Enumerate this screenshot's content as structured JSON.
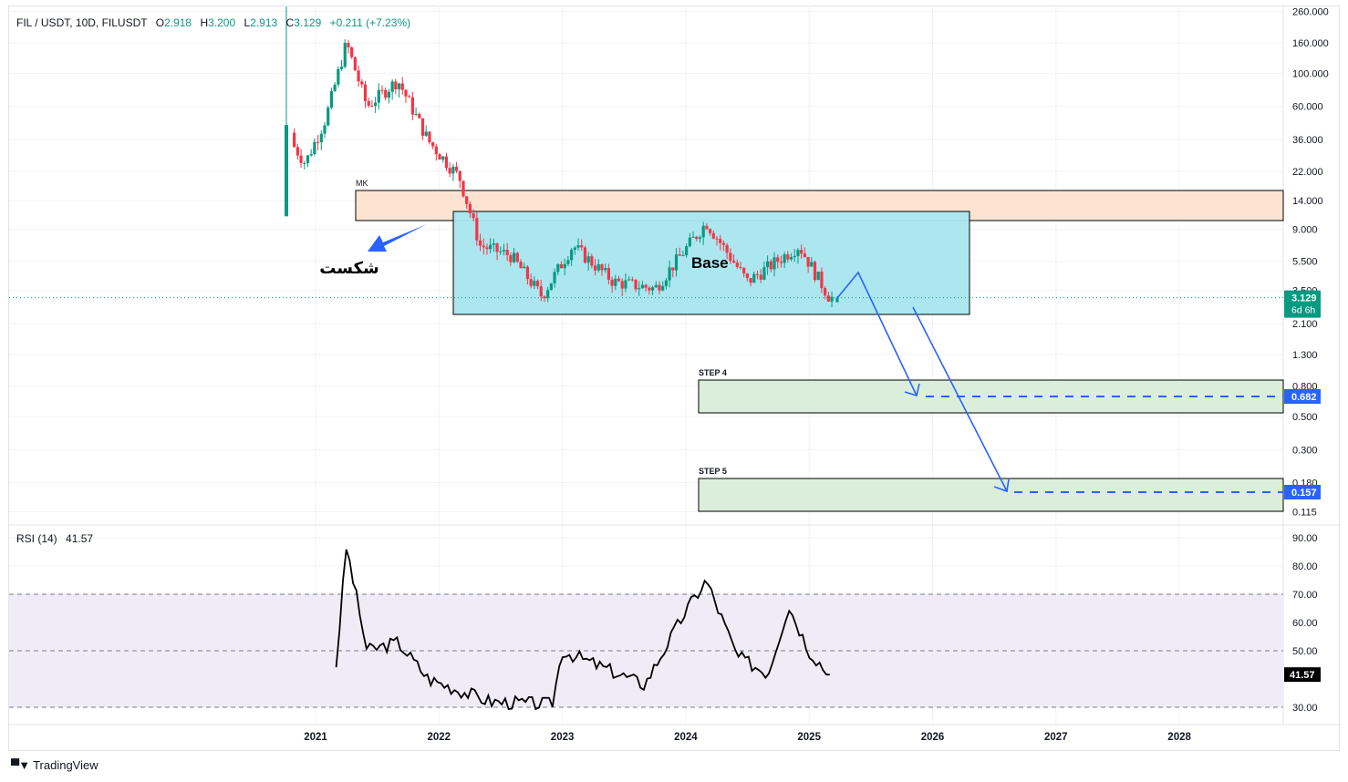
{
  "header": {
    "symbol": "FIL / USDT, 10D, FILUSDT",
    "open_label": "O",
    "open": "2.918",
    "high_label": "H",
    "high": "3.200",
    "low_label": "L",
    "low": "2.913",
    "close_label": "C",
    "close": "3.129",
    "change": "+0.211",
    "change_pct": "(+7.23%)"
  },
  "price_axis": {
    "ticks": [
      "260.000",
      "160.000",
      "100.000",
      "60.000",
      "36.000",
      "22.000",
      "14.000",
      "9.000",
      "5.500",
      "3.500",
      "2.100",
      "1.300",
      "0.800",
      "0.500",
      "0.300",
      "0.180",
      "0.115"
    ],
    "current_price": "3.129",
    "countdown": "6d 6h",
    "target_1": "0.682",
    "target_2": "0.157"
  },
  "rsi": {
    "label": "RSI (14)",
    "value": "41.57",
    "ticks": [
      "90.00",
      "80.00",
      "70.00",
      "60.00",
      "50.00",
      "30.00"
    ],
    "current_label": "41.57"
  },
  "time_axis": {
    "years": [
      "2021",
      "2022",
      "2023",
      "2024",
      "2025",
      "2026",
      "2027",
      "2028"
    ]
  },
  "annotations": {
    "mk_zone_label": "MK",
    "base_label": "Base",
    "breakdown_label": "شکست",
    "step4_label": "STEP 4",
    "step5_label": "STEP 5"
  },
  "colors": {
    "up": "#089981",
    "down": "#f23645",
    "mk_zone": "#fde3d2",
    "base_zone": "#a8e6ef",
    "step_zone": "#dbeedb",
    "arrow": "#2962ff",
    "rsi_band": "#efecf8"
  },
  "footer": {
    "brand": "TradingView"
  },
  "chart_data": [
    {
      "type": "candlestick",
      "title": "FIL / USDT, 10D, FILUSDT",
      "yscale": "log",
      "ylim": [
        0.1,
        280
      ],
      "x_ticks": [
        "2021",
        "2022",
        "2023",
        "2024",
        "2025",
        "2026",
        "2027",
        "2028"
      ],
      "y_ticks": [
        260,
        160,
        100,
        60,
        36,
        22,
        14,
        9,
        5.5,
        3.5,
        2.1,
        1.3,
        0.8,
        0.5,
        0.3,
        0.18,
        0.115
      ],
      "approx_closes": [
        {
          "date": "2020-10",
          "close": 40
        },
        {
          "date": "2020-12",
          "close": 25
        },
        {
          "date": "2021-02",
          "close": 50
        },
        {
          "date": "2021-04",
          "close": 160
        },
        {
          "date": "2021-06",
          "close": 60
        },
        {
          "date": "2021-09",
          "close": 90
        },
        {
          "date": "2021-12",
          "close": 35
        },
        {
          "date": "2022-03",
          "close": 20
        },
        {
          "date": "2022-05",
          "close": 7
        },
        {
          "date": "2022-08",
          "close": 6
        },
        {
          "date": "2022-11",
          "close": 3.2
        },
        {
          "date": "2023-02",
          "close": 7
        },
        {
          "date": "2023-06",
          "close": 4
        },
        {
          "date": "2023-10",
          "close": 3.6
        },
        {
          "date": "2024-03",
          "close": 10
        },
        {
          "date": "2024-07",
          "close": 4
        },
        {
          "date": "2024-12",
          "close": 7
        },
        {
          "date": "2025-03",
          "close": 3.129
        }
      ],
      "last_ohlc": {
        "open": 2.918,
        "high": 3.2,
        "low": 2.913,
        "close": 3.129,
        "change": 0.211,
        "change_pct": 7.23
      },
      "zones": [
        {
          "name": "MK",
          "from": 10.5,
          "to": 16.5
        },
        {
          "name": "Base",
          "from": 2.3,
          "to": 11.5
        },
        {
          "name": "STEP 4",
          "from": 0.55,
          "to": 0.85,
          "target": 0.682
        },
        {
          "name": "STEP 5",
          "from": 0.115,
          "to": 0.19,
          "target": 0.157
        }
      ]
    },
    {
      "type": "line",
      "title": "RSI (14)",
      "ylim": [
        25,
        92
      ],
      "y_ticks": [
        90,
        80,
        70,
        60,
        50,
        30
      ],
      "bands": {
        "upper": 70,
        "middle": 50,
        "lower": 30
      },
      "current": 41.57,
      "approx_values": [
        {
          "date": "2021-03",
          "value": 45
        },
        {
          "date": "2021-04",
          "value": 87
        },
        {
          "date": "2021-06",
          "value": 50
        },
        {
          "date": "2021-09",
          "value": 53
        },
        {
          "date": "2021-12",
          "value": 40
        },
        {
          "date": "2022-06",
          "value": 32
        },
        {
          "date": "2022-12",
          "value": 31
        },
        {
          "date": "2023-01",
          "value": 50
        },
        {
          "date": "2023-09",
          "value": 38
        },
        {
          "date": "2024-01",
          "value": 64
        },
        {
          "date": "2024-03",
          "value": 75
        },
        {
          "date": "2024-06",
          "value": 48
        },
        {
          "date": "2024-09",
          "value": 42
        },
        {
          "date": "2024-11",
          "value": 66
        },
        {
          "date": "2025-01",
          "value": 50
        },
        {
          "date": "2025-03",
          "value": 41.57
        }
      ]
    }
  ]
}
